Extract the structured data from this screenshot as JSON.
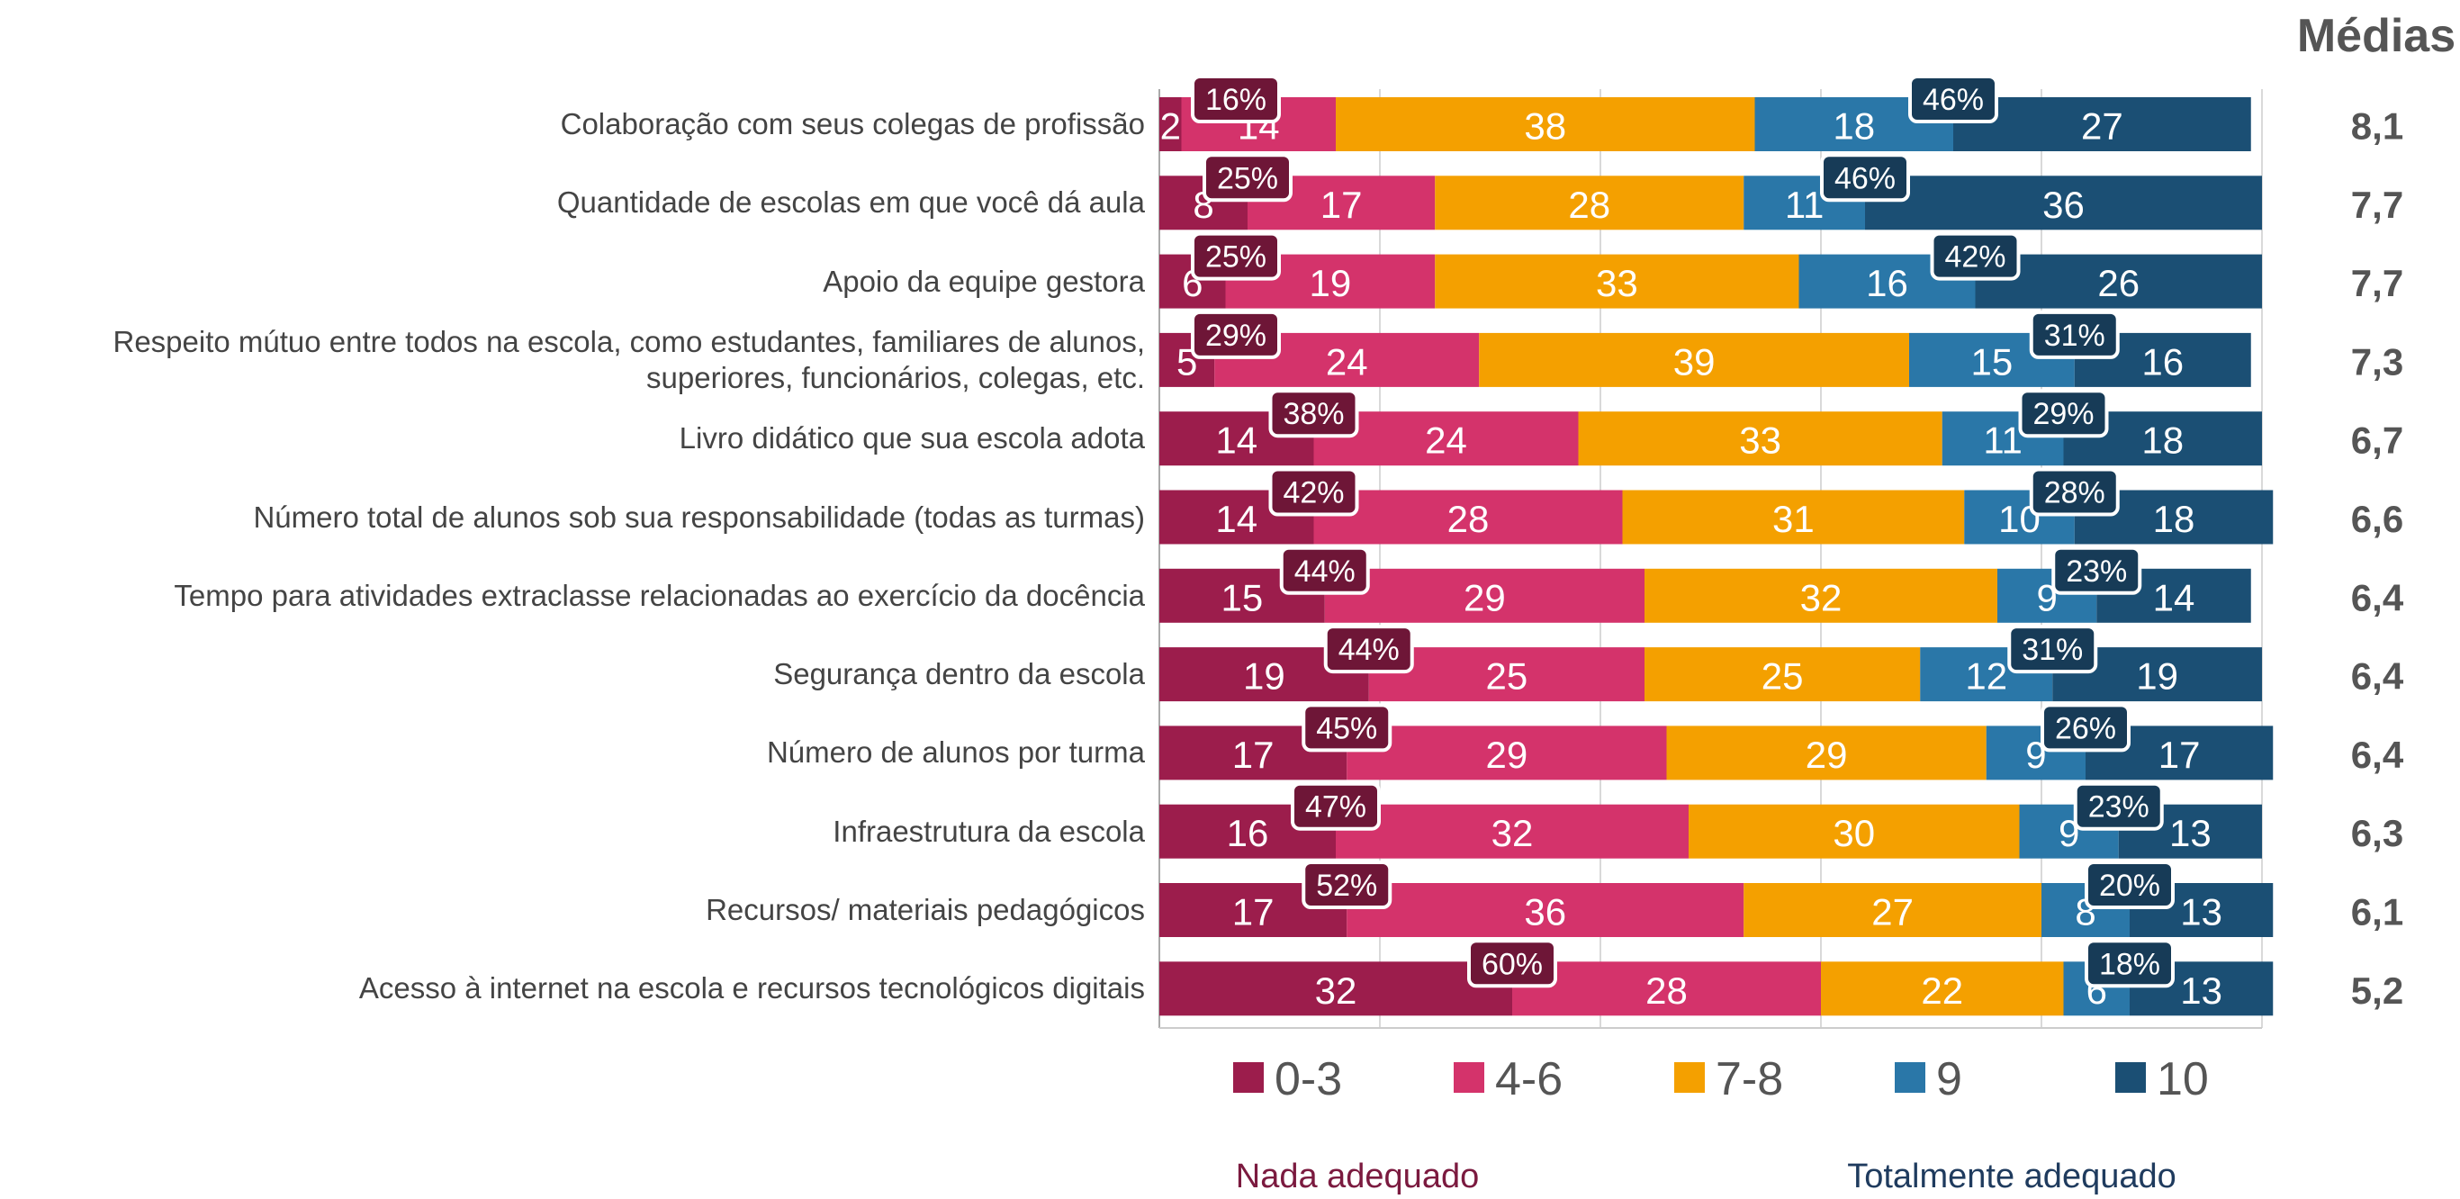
{
  "chart_data": {
    "type": "stacked_bar_horizontal",
    "categories": [
      "Colaboração com seus colegas de profissão",
      "Quantidade de escolas em que você dá aula",
      "Apoio da equipe gestora",
      "Respeito mútuo entre todos na escola, como estudantes, familiares de alunos, superiores, funcionários, colegas, etc.",
      "Livro didático que sua escola adota",
      "Número total de alunos sob sua responsabilidade (todas as turmas)",
      "Tempo para atividades extraclasse relacionadas ao exercício da docência",
      "Segurança dentro da escola",
      "Número de alunos por turma",
      "Infraestrutura da escola",
      "Recursos/ materiais pedagógicos",
      "Acesso à internet na escola e recursos tecnológicos digitais"
    ],
    "series": [
      {
        "name": "0-3",
        "color": "#9c1d4c",
        "values": [
          2,
          8,
          6,
          5,
          14,
          14,
          15,
          19,
          17,
          16,
          17,
          32
        ]
      },
      {
        "name": "4-6",
        "color": "#d4336b",
        "values": [
          14,
          17,
          19,
          24,
          24,
          28,
          29,
          25,
          29,
          32,
          36,
          28
        ]
      },
      {
        "name": "7-8",
        "color": "#f4a000",
        "values": [
          38,
          28,
          33,
          39,
          33,
          31,
          32,
          25,
          29,
          30,
          27,
          22
        ]
      },
      {
        "name": "9",
        "color": "#2a77a8",
        "values": [
          18,
          11,
          16,
          15,
          11,
          10,
          9,
          12,
          9,
          9,
          8,
          6
        ]
      },
      {
        "name": "10",
        "color": "#1b4f74",
        "values": [
          27,
          36,
          26,
          16,
          18,
          18,
          14,
          19,
          17,
          13,
          13,
          13
        ]
      }
    ],
    "low_sum": {
      "color": "#6e1637",
      "values": [
        16,
        25,
        25,
        29,
        38,
        42,
        44,
        44,
        45,
        47,
        52,
        60
      ],
      "value_labels": [
        "16%",
        "25%",
        "25%",
        "29%",
        "38%",
        "42%",
        "44%",
        "44%",
        "45%",
        "47%",
        "52%",
        "60%"
      ]
    },
    "high_sum": {
      "color": "#173b57",
      "values": [
        46,
        46,
        42,
        31,
        29,
        28,
        23,
        31,
        26,
        23,
        20,
        18
      ],
      "value_labels": [
        "46%",
        "46%",
        "42%",
        "31%",
        "29%",
        "28%",
        "23%",
        "31%",
        "26%",
        "23%",
        "20%",
        "18%"
      ]
    },
    "means_title": "Médias",
    "means": {
      "values": [
        8.1,
        7.7,
        7.7,
        7.3,
        6.7,
        6.6,
        6.4,
        6.4,
        6.4,
        6.3,
        6.1,
        5.2
      ],
      "value_labels": [
        "8,1",
        "7,7",
        "7,7",
        "7,3",
        "6,7",
        "6,6",
        "6,4",
        "6,4",
        "6,4",
        "6,3",
        "6,1",
        "5,2"
      ]
    },
    "annotations": [
      {
        "text": "Nada adequado",
        "color": "#7b1a3f"
      },
      {
        "text": "Totalmente adequado",
        "color": "#1f3b5e"
      }
    ],
    "xlim": [
      0,
      100
    ],
    "xticks": [
      0,
      20,
      40,
      60,
      80,
      100
    ],
    "grid": true
  }
}
